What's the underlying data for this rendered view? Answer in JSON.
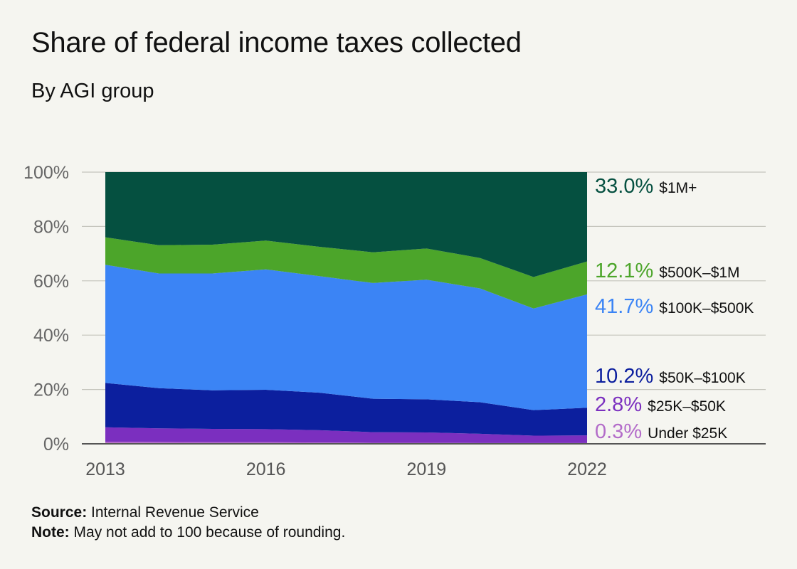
{
  "title": "Share of federal income taxes collected",
  "subtitle": "By AGI group",
  "footer": {
    "source_label": "Source:",
    "source_text": "Internal Revenue Service",
    "note_label": "Note:",
    "note_text": "May not add to 100 because of rounding."
  },
  "chart_data": {
    "type": "area",
    "stacked": true,
    "x": [
      2013,
      2014,
      2015,
      2016,
      2017,
      2018,
      2019,
      2020,
      2021,
      2022
    ],
    "x_ticks": [
      "2013",
      "2016",
      "2019",
      "2022"
    ],
    "y_ticks": [
      "0%",
      "20%",
      "40%",
      "60%",
      "80%",
      "100%"
    ],
    "ylim": [
      0,
      100
    ],
    "grid": true,
    "legend_placement": "right end labels",
    "series": [
      {
        "name": "Under $25K",
        "color": "#b36cc9",
        "end_label": "0.3%",
        "values": [
          0.8,
          0.7,
          0.6,
          0.6,
          0.5,
          0.4,
          0.4,
          0.3,
          0.3,
          0.3
        ]
      },
      {
        "name": "$25K–$50K",
        "color": "#7b2fbf",
        "end_label": "2.8%",
        "values": [
          5.3,
          5.0,
          4.9,
          4.8,
          4.5,
          3.9,
          3.8,
          3.4,
          2.7,
          2.8
        ]
      },
      {
        "name": "$50K–$100K",
        "color": "#0c1f9e",
        "end_label": "10.2%",
        "values": [
          16.3,
          14.8,
          14.2,
          14.5,
          13.8,
          12.3,
          12.2,
          11.6,
          9.4,
          10.2
        ]
      },
      {
        "name": "$100K–$500K",
        "color": "#3b84f5",
        "end_label": "41.7%",
        "values": [
          43.5,
          42.2,
          43.0,
          44.3,
          42.9,
          42.6,
          44.0,
          41.9,
          37.4,
          41.7
        ]
      },
      {
        "name": "$500K–$1M",
        "color": "#4ca52a",
        "end_label": "12.1%",
        "values": [
          10.1,
          10.4,
          10.6,
          10.6,
          10.8,
          11.3,
          11.5,
          11.2,
          11.6,
          12.1
        ]
      },
      {
        "name": "$1M+",
        "color": "#055040",
        "end_label": "33.0%",
        "values": [
          24.0,
          26.9,
          26.7,
          25.2,
          27.5,
          29.5,
          28.1,
          31.6,
          38.6,
          33.0
        ]
      }
    ]
  }
}
